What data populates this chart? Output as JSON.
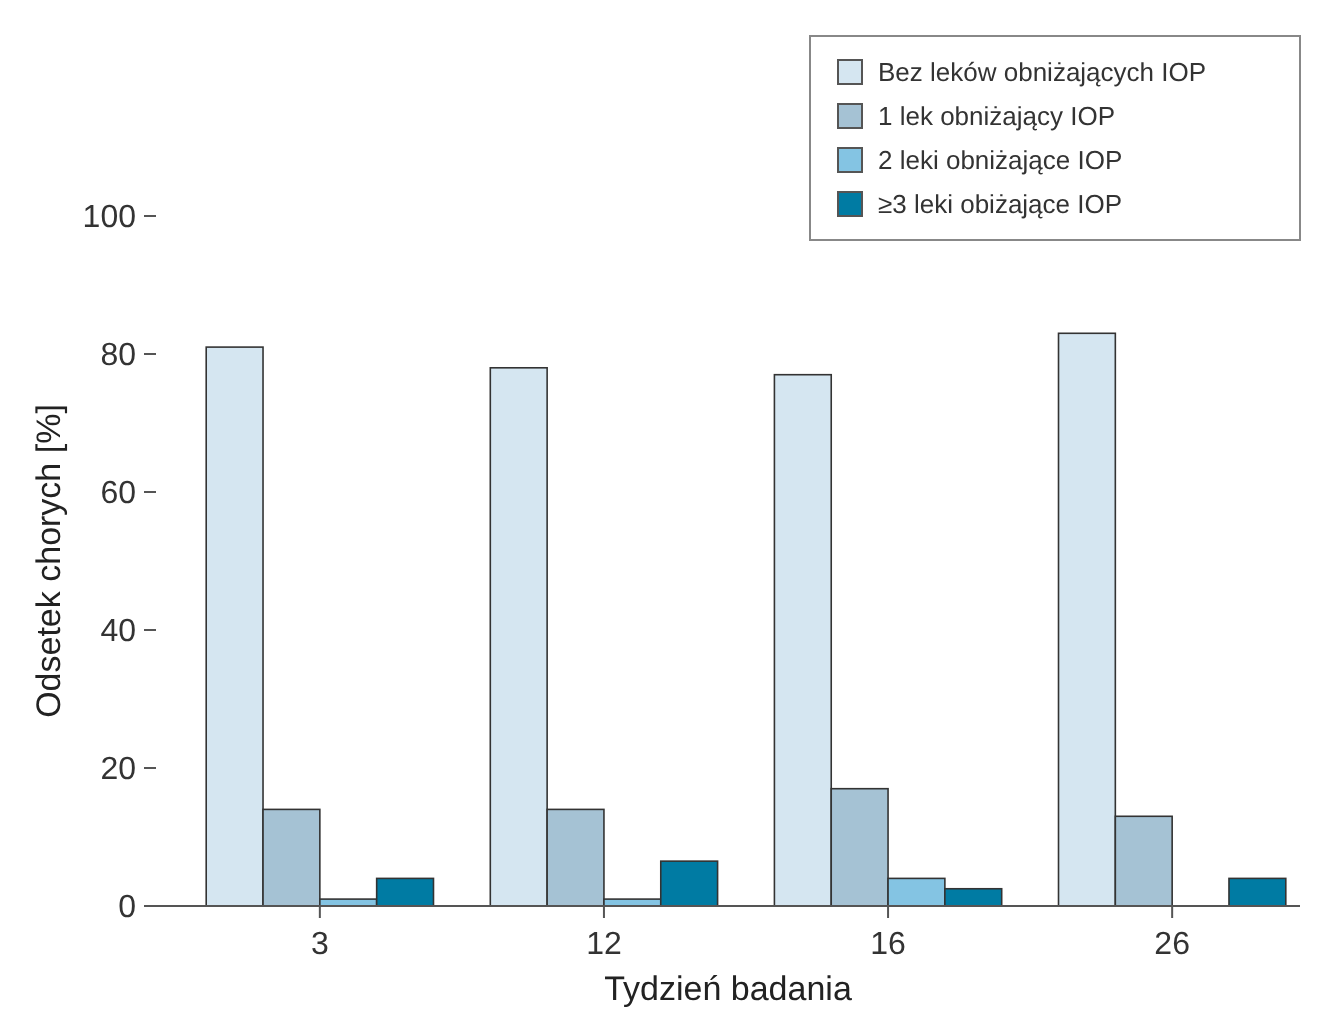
{
  "chart_data": {
    "type": "bar",
    "xlabel": "Tydzień badania",
    "ylabel": "Odsetek chorych [%]",
    "categories": [
      "3",
      "12",
      "16",
      "26"
    ],
    "series": [
      {
        "name": "Bez leków obniżających IOP",
        "color": "#d5e6f1",
        "values": [
          81,
          78,
          77,
          83
        ]
      },
      {
        "name": "1 lek obniżający IOP",
        "color": "#a5c2d4",
        "values": [
          14,
          14,
          17,
          13
        ]
      },
      {
        "name": "2 leki obniżające IOP",
        "color": "#84c4e3",
        "values": [
          1,
          1,
          4,
          null
        ]
      },
      {
        "name": "≥3 leki obiżające IOP",
        "color": "#007ba3",
        "values": [
          4,
          6.5,
          2.5,
          4
        ]
      }
    ],
    "ylim": [
      0,
      100
    ],
    "yticks": [
      0,
      20,
      40,
      60,
      80,
      100
    ],
    "grid": false,
    "legend": "top right"
  }
}
